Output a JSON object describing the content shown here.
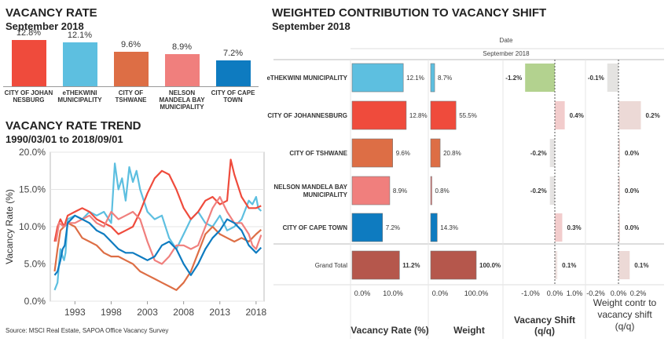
{
  "chart_data": [
    {
      "type": "bar",
      "title": "VACANCY RATE",
      "subtitle": "September 2018",
      "categories": [
        "CITY OF JOHAN NESBURG",
        "eTHEKWINI MUNICIPALITY",
        "CITY OF TSHWANE",
        "NELSON MANDELA BAY MUNICIPALITY",
        "CITY OF CAPE TOWN"
      ],
      "value_labels": [
        "12.8%",
        "12.1%",
        "9.6%",
        "8.9%",
        "7.2%"
      ],
      "values": [
        12.8,
        12.1,
        9.6,
        8.9,
        7.2
      ],
      "colors": [
        "#ef4b3c",
        "#5dbfe0",
        "#dd6e45",
        "#f07f7d",
        "#0e7bc0"
      ],
      "ylim": [
        0,
        13
      ]
    },
    {
      "type": "line",
      "title": "VACANCY RATE TREND",
      "subtitle": "1990/03/01 to 2018/09/01",
      "ylabel": "Vacancy Rate (%)",
      "y_ticks": [
        "20.0%",
        "15.0%",
        "10.0%",
        "5.0%",
        "0.0%"
      ],
      "x_ticks": [
        "1993",
        "1998",
        "2003",
        "2008",
        "2013",
        "2018"
      ],
      "xlim": [
        1989.6,
        2019.1
      ],
      "ylim": [
        0,
        20
      ],
      "source": "Source: MSCI Real Estate, SAPOA Office Vacancy Survey",
      "series": [
        {
          "color": "#5dbfe0",
          "points": [
            [
              1990.2,
              1.5
            ],
            [
              1990.6,
              2.5
            ],
            [
              1990.8,
              5.0
            ],
            [
              1991.0,
              7.0
            ],
            [
              1991.3,
              6.0
            ],
            [
              1991.5,
              5.5
            ],
            [
              1991.7,
              6.5
            ],
            [
              1992.0,
              11.0
            ],
            [
              1993.0,
              11.5
            ],
            [
              1994.0,
              11.0
            ],
            [
              1995.0,
              12.0
            ],
            [
              1996.0,
              11.5
            ],
            [
              1997.0,
              12.0
            ],
            [
              1998.0,
              10.5
            ],
            [
              1998.5,
              18.5
            ],
            [
              1999.0,
              15.0
            ],
            [
              1999.5,
              16.5
            ],
            [
              2000.0,
              13.5
            ],
            [
              2000.5,
              18.0
            ],
            [
              2001.0,
              16.0
            ],
            [
              2001.5,
              17.5
            ],
            [
              2002.0,
              15.0
            ],
            [
              2003.0,
              12.0
            ],
            [
              2004.0,
              11.0
            ],
            [
              2005.0,
              11.5
            ],
            [
              2006.0,
              8.5
            ],
            [
              2007.0,
              7.0
            ],
            [
              2008.0,
              9.0
            ],
            [
              2009.0,
              11.0
            ],
            [
              2010.0,
              12.0
            ],
            [
              2011.0,
              10.5
            ],
            [
              2012.0,
              10.0
            ],
            [
              2013.0,
              11.5
            ],
            [
              2014.0,
              9.5
            ],
            [
              2015.0,
              10.0
            ],
            [
              2016.0,
              11.0
            ],
            [
              2017.0,
              13.5
            ],
            [
              2017.5,
              13.0
            ],
            [
              2018.0,
              14.0
            ],
            [
              2018.3,
              12.5
            ],
            [
              2018.7,
              12.1
            ]
          ]
        },
        {
          "color": "#ef4b3c",
          "points": [
            [
              1990.2,
              8.0
            ],
            [
              1990.6,
              10.0
            ],
            [
              1991.0,
              11.0
            ],
            [
              1991.5,
              10.0
            ],
            [
              1992.0,
              11.5
            ],
            [
              1993.0,
              12.0
            ],
            [
              1994.0,
              12.5
            ],
            [
              1995.0,
              12.0
            ],
            [
              1996.0,
              11.0
            ],
            [
              1997.0,
              10.5
            ],
            [
              1998.0,
              10.0
            ],
            [
              1999.0,
              9.0
            ],
            [
              2000.0,
              9.5
            ],
            [
              2001.0,
              10.0
            ],
            [
              2002.0,
              12.0
            ],
            [
              2003.0,
              14.5
            ],
            [
              2004.0,
              16.5
            ],
            [
              2005.0,
              17.5
            ],
            [
              2006.0,
              17.0
            ],
            [
              2007.0,
              15.0
            ],
            [
              2008.0,
              12.5
            ],
            [
              2009.0,
              11.0
            ],
            [
              2010.0,
              12.0
            ],
            [
              2011.0,
              13.5
            ],
            [
              2012.0,
              14.0
            ],
            [
              2013.0,
              13.0
            ],
            [
              2014.0,
              13.5
            ],
            [
              2014.5,
              19.0
            ],
            [
              2015.0,
              17.0
            ],
            [
              2015.5,
              15.5
            ],
            [
              2016.0,
              14.0
            ],
            [
              2017.0,
              12.5
            ],
            [
              2018.0,
              12.5
            ],
            [
              2018.7,
              12.8
            ]
          ]
        },
        {
          "color": "#dd6e45",
          "points": [
            [
              1990.2,
              4.0
            ],
            [
              1990.6,
              7.0
            ],
            [
              1991.0,
              9.5
            ],
            [
              1991.5,
              10.0
            ],
            [
              1992.0,
              10.5
            ],
            [
              1993.0,
              10.0
            ],
            [
              1994.0,
              8.5
            ],
            [
              1995.0,
              8.0
            ],
            [
              1996.0,
              7.5
            ],
            [
              1997.0,
              6.5
            ],
            [
              1998.0,
              6.0
            ],
            [
              1999.0,
              6.0
            ],
            [
              2000.0,
              5.5
            ],
            [
              2001.0,
              5.0
            ],
            [
              2002.0,
              4.0
            ],
            [
              2003.0,
              3.5
            ],
            [
              2004.0,
              3.0
            ],
            [
              2005.0,
              2.5
            ],
            [
              2006.0,
              2.0
            ],
            [
              2007.0,
              1.5
            ],
            [
              2008.0,
              2.5
            ],
            [
              2009.0,
              4.0
            ],
            [
              2010.0,
              6.5
            ],
            [
              2011.0,
              9.0
            ],
            [
              2012.0,
              10.0
            ],
            [
              2013.0,
              9.0
            ],
            [
              2014.0,
              8.5
            ],
            [
              2015.0,
              8.0
            ],
            [
              2016.0,
              8.5
            ],
            [
              2017.0,
              8.0
            ],
            [
              2018.0,
              9.0
            ],
            [
              2018.7,
              9.6
            ]
          ]
        },
        {
          "color": "#f07f7d",
          "points": [
            [
              1990.4,
              8.0
            ],
            [
              1990.8,
              10.5
            ],
            [
              1991.5,
              10.0
            ],
            [
              1992.0,
              10.5
            ],
            [
              1993.0,
              10.5
            ],
            [
              1994.0,
              11.0
            ],
            [
              1995.0,
              11.5
            ],
            [
              1996.0,
              10.5
            ],
            [
              1997.0,
              10.0
            ],
            [
              1998.0,
              12.0
            ],
            [
              1999.0,
              11.0
            ],
            [
              2000.0,
              11.5
            ],
            [
              2001.0,
              12.0
            ],
            [
              2002.0,
              11.0
            ],
            [
              2003.0,
              8.0
            ],
            [
              2004.0,
              5.5
            ],
            [
              2005.0,
              5.0
            ],
            [
              2006.0,
              6.0
            ],
            [
              2007.0,
              7.5
            ],
            [
              2008.0,
              7.5
            ],
            [
              2009.0,
              7.0
            ],
            [
              2010.0,
              7.5
            ],
            [
              2011.0,
              10.0
            ],
            [
              2012.0,
              12.5
            ],
            [
              2013.0,
              14.0
            ],
            [
              2014.0,
              12.0
            ],
            [
              2015.0,
              10.5
            ],
            [
              2016.0,
              10.5
            ],
            [
              2017.0,
              9.0
            ],
            [
              2017.5,
              7.5
            ],
            [
              2018.0,
              7.0
            ],
            [
              2018.7,
              8.9
            ]
          ]
        },
        {
          "color": "#0e7bc0",
          "points": [
            [
              1990.2,
              3.5
            ],
            [
              1990.6,
              4.0
            ],
            [
              1991.0,
              5.5
            ],
            [
              1991.3,
              7.0
            ],
            [
              1991.6,
              7.5
            ],
            [
              1992.0,
              10.5
            ],
            [
              1993.0,
              11.5
            ],
            [
              1994.0,
              11.0
            ],
            [
              1995.0,
              10.5
            ],
            [
              1996.0,
              9.5
            ],
            [
              1997.0,
              9.0
            ],
            [
              1998.0,
              8.0
            ],
            [
              1999.0,
              7.0
            ],
            [
              2000.0,
              6.5
            ],
            [
              2001.0,
              6.5
            ],
            [
              2002.0,
              6.0
            ],
            [
              2003.0,
              5.5
            ],
            [
              2004.0,
              6.0
            ],
            [
              2005.0,
              7.5
            ],
            [
              2006.0,
              8.0
            ],
            [
              2007.0,
              7.0
            ],
            [
              2008.0,
              5.0
            ],
            [
              2009.0,
              3.5
            ],
            [
              2010.0,
              5.0
            ],
            [
              2011.0,
              7.0
            ],
            [
              2012.0,
              8.5
            ],
            [
              2013.0,
              9.5
            ],
            [
              2014.0,
              11.0
            ],
            [
              2015.0,
              10.5
            ],
            [
              2016.0,
              9.5
            ],
            [
              2017.0,
              7.5
            ],
            [
              2018.0,
              6.5
            ],
            [
              2018.7,
              7.2
            ]
          ]
        }
      ]
    },
    {
      "type": "table",
      "title": "WEIGHTED CONTRIBUTION TO VACANCY SHIFT",
      "subtitle": "September 2018",
      "column_header_top": "Date",
      "column_header_date": "September 2018",
      "rows": [
        {
          "label": "eTHEKWINI MUNICIPALITY",
          "color": "#5dbfe0",
          "vacancy": 12.1,
          "vacancy_label": "12.1%",
          "weight": 8.7,
          "weight_label": "8.7%",
          "shift": -1.2,
          "shift_label": "-1.2%",
          "shift_color": "#b3d28f",
          "contr": -0.1,
          "contr_label": "-0.1%"
        },
        {
          "label": "CITY OF JOHANNESBURG",
          "color": "#ef4b3c",
          "vacancy": 12.8,
          "vacancy_label": "12.8%",
          "weight": 55.5,
          "weight_label": "55.5%",
          "shift": 0.4,
          "shift_label": "0.4%",
          "shift_color": "#f2cccc",
          "contr": 0.2,
          "contr_label": "0.2%"
        },
        {
          "label": "CITY OF TSHWANE",
          "color": "#dd6e45",
          "vacancy": 9.6,
          "vacancy_label": "9.6%",
          "weight": 20.8,
          "weight_label": "20.8%",
          "shift": -0.2,
          "shift_label": "-0.2%",
          "shift_color": "#e5e3e2",
          "contr": 0.0,
          "contr_label": "0.0%"
        },
        {
          "label": "NELSON MANDELA BAY MUNICIPALITY",
          "color": "#f07f7d",
          "vacancy": 8.9,
          "vacancy_label": "8.9%",
          "weight": 0.8,
          "weight_label": "0.8%",
          "shift": -0.2,
          "shift_label": "-0.2%",
          "shift_color": "#e5e3e2",
          "contr": 0.0,
          "contr_label": "0.0%"
        },
        {
          "label": "CITY OF CAPE TOWN",
          "color": "#0e7bc0",
          "vacancy": 7.2,
          "vacancy_label": "7.2%",
          "weight": 14.3,
          "weight_label": "14.3%",
          "shift": 0.3,
          "shift_label": "0.3%",
          "shift_color": "#f2cccc",
          "contr": 0.0,
          "contr_label": "0.0%"
        },
        {
          "label": "Grand Total",
          "color": "#b5574c",
          "vacancy": 11.2,
          "vacancy_label": "11.2%",
          "weight": 100.0,
          "weight_label": "100.0%",
          "shift": 0.1,
          "shift_label": "0.1%",
          "shift_color": "#efe3e1",
          "contr": 0.1,
          "contr_label": "0.1%"
        }
      ],
      "axes": {
        "vacancy": {
          "ticks": [
            "0.0%",
            "10.0%"
          ],
          "title": "Vacancy Rate (%)",
          "max": 13
        },
        "weight": {
          "ticks": [
            "0.0%",
            "100.0%"
          ],
          "title": "Weight",
          "max": 100
        },
        "shift": {
          "ticks": [
            "-1.0%",
            "0.0%",
            "1.0%"
          ],
          "title_line1": "Vacancy Shift",
          "title_line2": "(q/q)",
          "min": -1.5,
          "max": 1.3
        },
        "contr": {
          "ticks": [
            "-0.2%",
            "0.0%",
            "0.2%"
          ],
          "title_line1": "Weight contr to",
          "title_line2": "vacancy shift",
          "title_line3": "(q/q)",
          "min": -0.25,
          "max": 0.3
        }
      }
    }
  ]
}
